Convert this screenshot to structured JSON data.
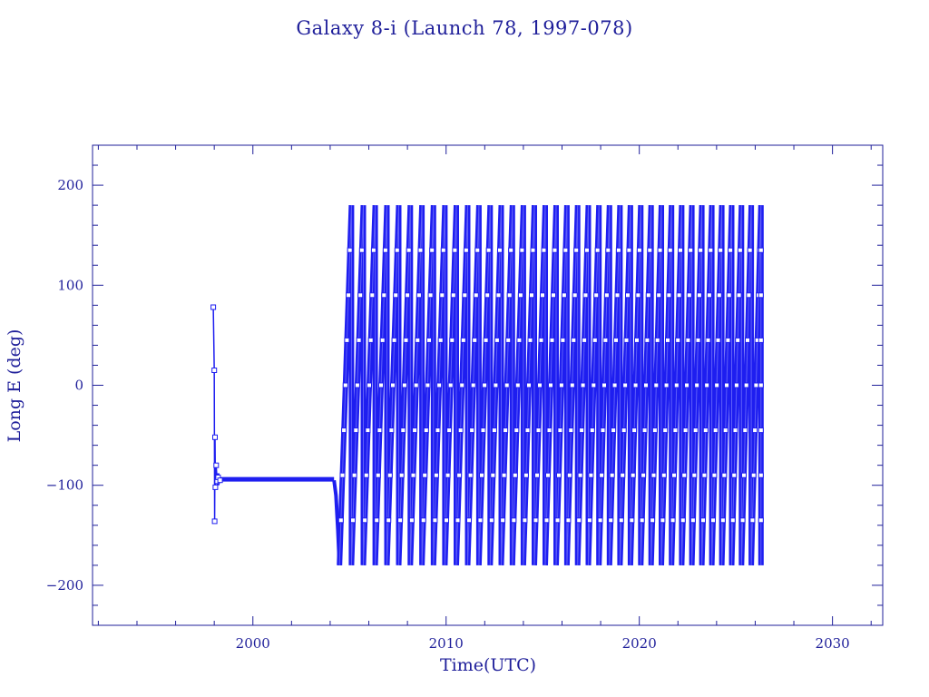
{
  "chart_data": {
    "type": "line",
    "title": "Galaxy 8-i (Launch 78, 1997-078)",
    "xlabel": "Time(UTC)",
    "ylabel": "Long E (deg)",
    "xlim": [
      1991.7,
      2032.6
    ],
    "ylim": [
      -240,
      240
    ],
    "xticks": [
      2000,
      2010,
      2020,
      2030
    ],
    "yticks": [
      -200,
      -100,
      0,
      100,
      200
    ],
    "xtick_labels": [
      "2000",
      "2010",
      "2020",
      "2030"
    ],
    "ytick_labels": [
      "−200",
      "−100",
      "0",
      "100",
      "200"
    ],
    "x_minor_step": 2,
    "y_minor_step": 20,
    "grid": false,
    "markers": "square",
    "colors": {
      "line": "#1e1ef0",
      "axis": "#1f1f9a"
    },
    "series": [
      {
        "segments": [
          {
            "kind": "launch_transfer",
            "points": [
              [
                1997.95,
                78
              ],
              [
                1998.0,
                15
              ],
              [
                1998.02,
                -136
              ],
              [
                1998.04,
                -52
              ],
              [
                1998.06,
                -102
              ],
              [
                1998.1,
                -80
              ],
              [
                1998.15,
                -96
              ],
              [
                1998.2,
                -92
              ],
              [
                1998.3,
                -95
              ]
            ]
          },
          {
            "kind": "station_kept",
            "x_range": [
              1998.3,
              2004.2
            ],
            "value": -94
          },
          {
            "kind": "decay",
            "points": [
              [
                2004.2,
                -95
              ],
              [
                2004.3,
                -110
              ],
              [
                2004.4,
                -145
              ],
              [
                2004.48,
                -180
              ]
            ]
          },
          {
            "kind": "drift_wrap",
            "x_range": [
              2004.48,
              2026.3
            ],
            "first_cycle_years": 0.62,
            "last_cycle_years": 0.5,
            "low": -180,
            "high": 180,
            "end_value": 70
          }
        ]
      }
    ]
  }
}
